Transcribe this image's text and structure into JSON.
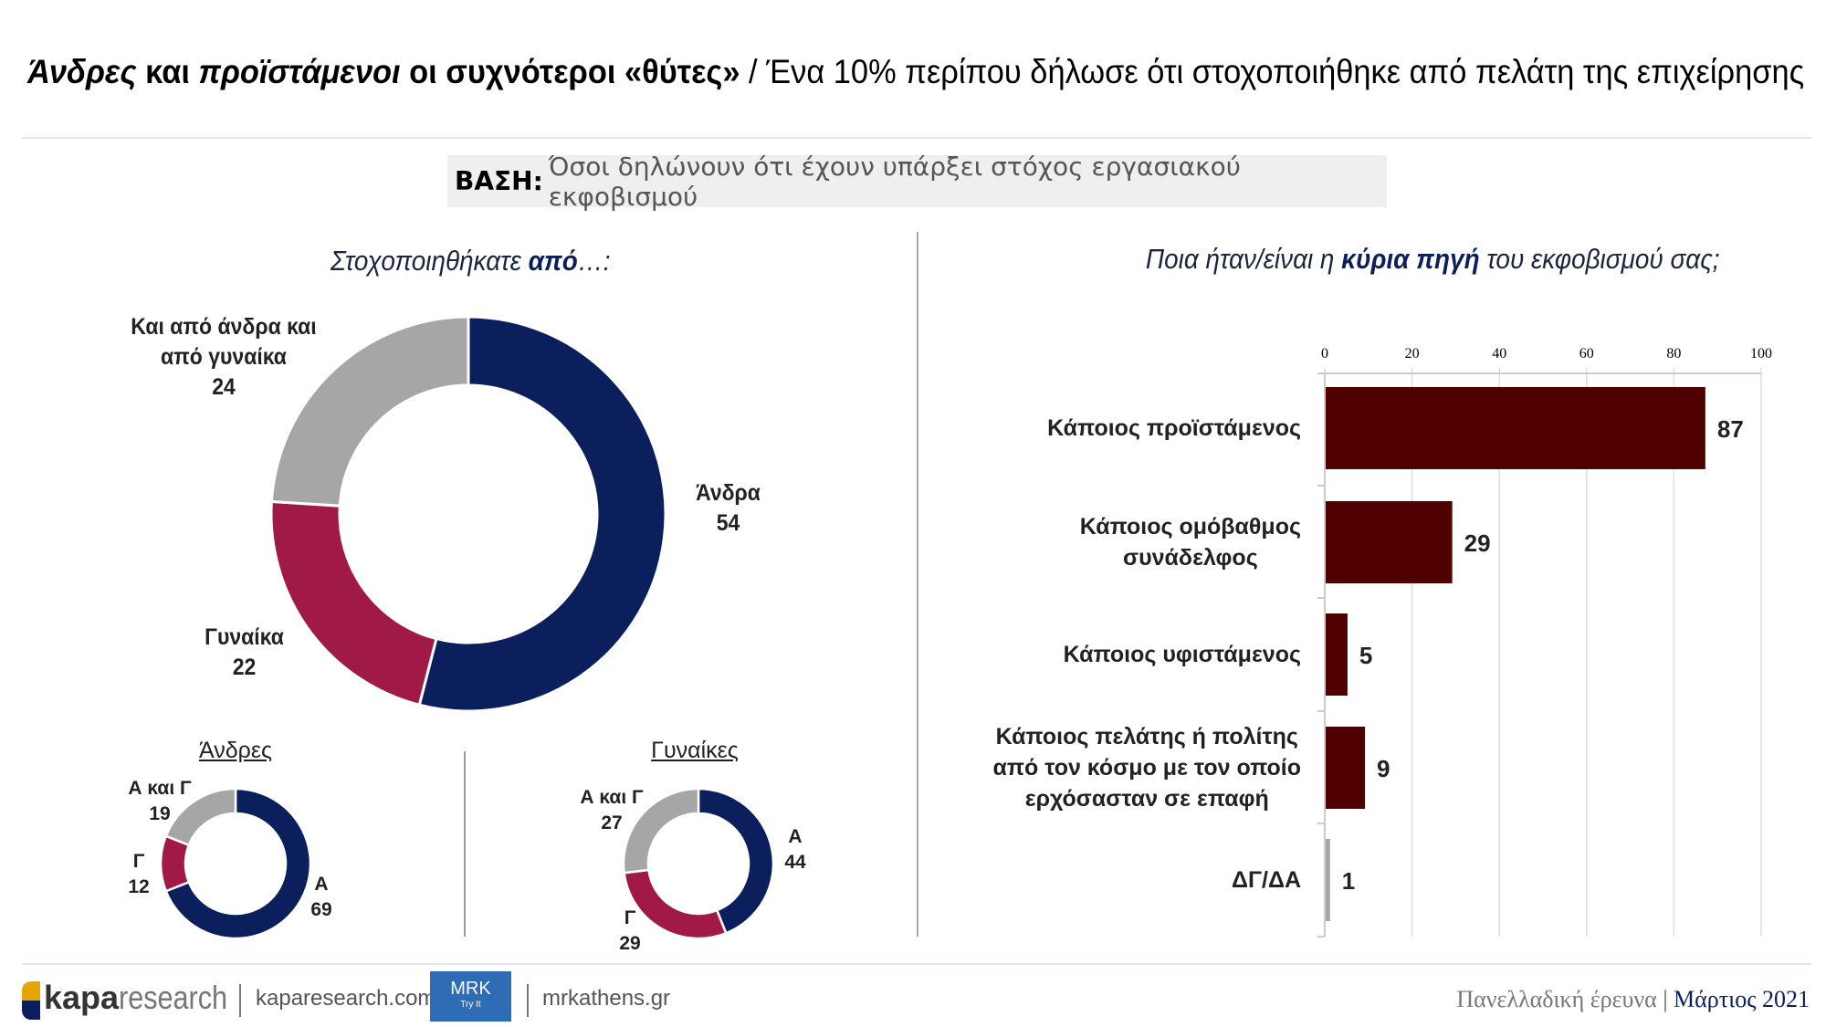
{
  "title": {
    "bold_part1": "Άνδρες",
    "mid1": " και ",
    "bold_part2": "προϊστάμενοι",
    "mid2": " οι συχνότεροι «θύτες»",
    "rest": " / Ένα 10% περίπου δήλωσε ότι στοχοποιήθηκε από πελάτη της επιχείρησης"
  },
  "base": {
    "label": "ΒΑΣΗ:",
    "text": "Όσοι δηλώνουν ότι έχουν υπάρξει στόχος εργασιακού εκφοβισμού"
  },
  "left_subtitle": {
    "pre": "Στοχοποιηθήκατε ",
    "bold": "από",
    "post": "…:"
  },
  "right_subtitle": {
    "pre": "Ποια ήταν/είναι η ",
    "bold": "κύρια πηγή",
    "post": " του εκφοβισμού σας;"
  },
  "colors": {
    "navy": "#0b1f5c",
    "crimson": "#a11a46",
    "gray": "#a6a6a6",
    "bar": "#500000"
  },
  "chart_data": [
    {
      "type": "pie",
      "subtype": "donut",
      "title": "Στοχοποιηθήκατε από…:",
      "categories": [
        "Άνδρα",
        "Γυναίκα",
        "Και από άνδρα και από γυναίκα"
      ],
      "values": [
        54,
        22,
        24
      ],
      "labels": [
        "Άνδρα",
        "Γυναίκα",
        "Και από άνδρα και\nαπό γυναίκα"
      ]
    },
    {
      "type": "pie",
      "subtype": "donut",
      "title": "Άνδρες",
      "categories": [
        "Α",
        "Γ",
        "Α και Γ"
      ],
      "values": [
        69,
        12,
        19
      ]
    },
    {
      "type": "pie",
      "subtype": "donut",
      "title": "Γυναίκες",
      "categories": [
        "Α",
        "Γ",
        "Α και Γ"
      ],
      "values": [
        44,
        29,
        27
      ]
    },
    {
      "type": "bar",
      "orientation": "horizontal",
      "title": "Ποια ήταν/είναι η κύρια πηγή του εκφοβισμού σας;",
      "categories": [
        "Κάποιος προϊστάμενος",
        "Κάποιος ομόβαθμος\nσυνάδελφος",
        "Κάποιος υφιστάμενος",
        "Κάποιος πελάτης ή πολίτης\nαπό τον κόσμο με τον οποίο\nερχόσασταν σε επαφή",
        "ΔΓ/ΔΑ"
      ],
      "values": [
        87,
        29,
        5,
        9,
        1
      ],
      "xlim": [
        0,
        100
      ],
      "xticks": [
        "0",
        "20",
        "40",
        "60",
        "80",
        "100"
      ],
      "grid": true
    }
  ],
  "footer": {
    "brand_bold": "kapa",
    "brand_light": "research",
    "site1": "kaparesearch.com",
    "mrk": "MRK",
    "mrk_sub": "Try It",
    "site2": "mrkathens.gr",
    "survey": "Πανελλαδική έρευνα",
    "date": "Μάρτιος 2021"
  }
}
